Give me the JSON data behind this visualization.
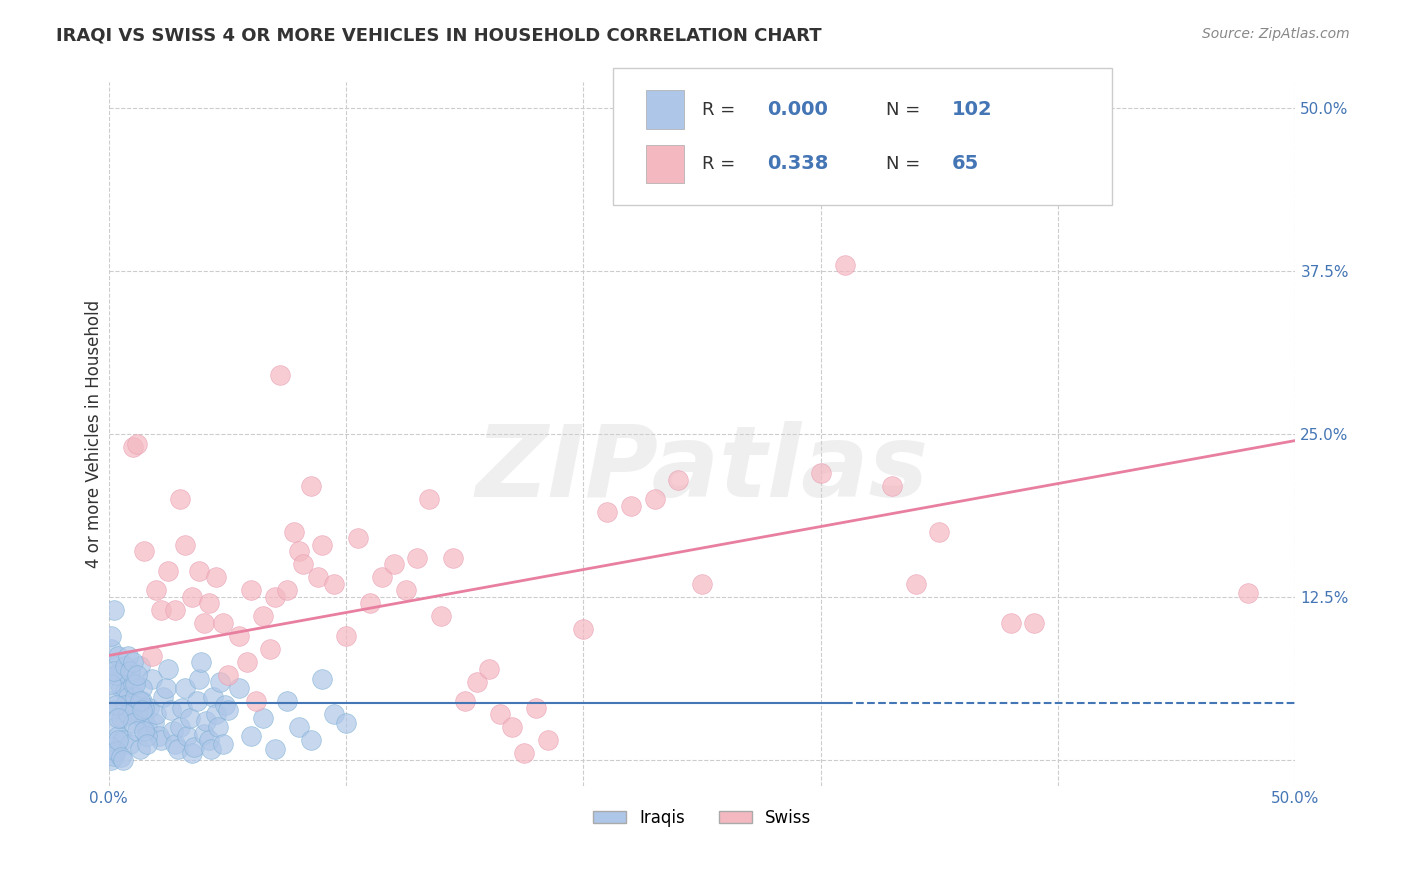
{
  "title": "IRAQI VS SWISS 4 OR MORE VEHICLES IN HOUSEHOLD CORRELATION CHART",
  "source": "Source: ZipAtlas.com",
  "ylabel": "4 or more Vehicles in Household",
  "xlim": [
    0.0,
    0.5
  ],
  "ylim": [
    -0.02,
    0.52
  ],
  "xticks": [
    0.0,
    0.1,
    0.2,
    0.3,
    0.4,
    0.5
  ],
  "xtick_labels": [
    "0.0%",
    "",
    "",
    "",
    "",
    "50.0%"
  ],
  "ytick_labels_right": [
    "50.0%",
    "37.5%",
    "25.0%",
    "12.5%",
    ""
  ],
  "yticks_right": [
    0.5,
    0.375,
    0.25,
    0.125,
    0.0
  ],
  "background_color": "#ffffff",
  "grid_color": "#cccccc",
  "iraqi_color": "#aec6e8",
  "swiss_color": "#f4b8c1",
  "iraqi_edge_color": "#7aafd4",
  "swiss_edge_color": "#e898b0",
  "iraqi_line_color": "#4475b4",
  "swiss_line_color": "#e87fa0",
  "iraqi_R": "0.000",
  "iraqi_N": "102",
  "swiss_R": "0.338",
  "swiss_N": "65",
  "watermark": "ZIPatlas",
  "iraqi_points": [
    [
      0.001,
      0.085
    ],
    [
      0.002,
      0.072
    ],
    [
      0.003,
      0.065
    ],
    [
      0.004,
      0.06
    ],
    [
      0.005,
      0.055
    ],
    [
      0.006,
      0.068
    ],
    [
      0.007,
      0.052
    ],
    [
      0.008,
      0.048
    ],
    [
      0.009,
      0.043
    ],
    [
      0.01,
      0.058
    ],
    [
      0.011,
      0.038
    ],
    [
      0.012,
      0.035
    ],
    [
      0.013,
      0.072
    ],
    [
      0.014,
      0.045
    ],
    [
      0.015,
      0.03
    ],
    [
      0.016,
      0.025
    ],
    [
      0.017,
      0.04
    ],
    [
      0.018,
      0.062
    ],
    [
      0.019,
      0.028
    ],
    [
      0.02,
      0.035
    ],
    [
      0.021,
      0.018
    ],
    [
      0.022,
      0.015
    ],
    [
      0.023,
      0.048
    ],
    [
      0.024,
      0.055
    ],
    [
      0.025,
      0.07
    ],
    [
      0.026,
      0.038
    ],
    [
      0.027,
      0.022
    ],
    [
      0.028,
      0.012
    ],
    [
      0.029,
      0.008
    ],
    [
      0.03,
      0.025
    ],
    [
      0.031,
      0.04
    ],
    [
      0.032,
      0.055
    ],
    [
      0.033,
      0.018
    ],
    [
      0.034,
      0.032
    ],
    [
      0.035,
      0.005
    ],
    [
      0.036,
      0.01
    ],
    [
      0.037,
      0.045
    ],
    [
      0.038,
      0.062
    ],
    [
      0.039,
      0.075
    ],
    [
      0.04,
      0.02
    ],
    [
      0.041,
      0.03
    ],
    [
      0.042,
      0.015
    ],
    [
      0.043,
      0.008
    ],
    [
      0.044,
      0.048
    ],
    [
      0.045,
      0.035
    ],
    [
      0.046,
      0.025
    ],
    [
      0.047,
      0.06
    ],
    [
      0.048,
      0.012
    ],
    [
      0.049,
      0.042
    ],
    [
      0.05,
      0.038
    ],
    [
      0.055,
      0.055
    ],
    [
      0.06,
      0.018
    ],
    [
      0.065,
      0.032
    ],
    [
      0.07,
      0.008
    ],
    [
      0.075,
      0.045
    ],
    [
      0.08,
      0.025
    ],
    [
      0.085,
      0.015
    ],
    [
      0.09,
      0.062
    ],
    [
      0.095,
      0.035
    ],
    [
      0.1,
      0.028
    ],
    [
      0.001,
      0.045
    ],
    [
      0.002,
      0.038
    ],
    [
      0.003,
      0.025
    ],
    [
      0.004,
      0.018
    ],
    [
      0.005,
      0.032
    ],
    [
      0.006,
      0.015
    ],
    [
      0.007,
      0.042
    ],
    [
      0.008,
      0.035
    ],
    [
      0.009,
      0.012
    ],
    [
      0.01,
      0.028
    ],
    [
      0.011,
      0.048
    ],
    [
      0.012,
      0.022
    ],
    [
      0.013,
      0.008
    ],
    [
      0.014,
      0.055
    ],
    [
      0.015,
      0.04
    ],
    [
      0.016,
      0.018
    ],
    [
      0.001,
      0.01
    ],
    [
      0.002,
      0.005
    ],
    [
      0.003,
      0.065
    ],
    [
      0.004,
      0.08
    ],
    [
      0.001,
      0.058
    ],
    [
      0.002,
      0.068
    ],
    [
      0.003,
      0.042
    ],
    [
      0.004,
      0.032
    ],
    [
      0.001,
      0.0
    ],
    [
      0.002,
      0.003
    ],
    [
      0.003,
      0.007
    ],
    [
      0.004,
      0.015
    ],
    [
      0.001,
      0.095
    ],
    [
      0.002,
      0.115
    ],
    [
      0.005,
      0.002
    ],
    [
      0.006,
      0.0
    ],
    [
      0.007,
      0.072
    ],
    [
      0.008,
      0.08
    ],
    [
      0.009,
      0.068
    ],
    [
      0.01,
      0.075
    ],
    [
      0.011,
      0.058
    ],
    [
      0.012,
      0.065
    ],
    [
      0.013,
      0.045
    ],
    [
      0.014,
      0.038
    ],
    [
      0.015,
      0.022
    ],
    [
      0.016,
      0.012
    ]
  ],
  "swiss_points": [
    [
      0.01,
      0.24
    ],
    [
      0.012,
      0.242
    ],
    [
      0.015,
      0.16
    ],
    [
      0.018,
      0.08
    ],
    [
      0.02,
      0.13
    ],
    [
      0.022,
      0.115
    ],
    [
      0.025,
      0.145
    ],
    [
      0.028,
      0.115
    ],
    [
      0.03,
      0.2
    ],
    [
      0.032,
      0.165
    ],
    [
      0.035,
      0.125
    ],
    [
      0.038,
      0.145
    ],
    [
      0.04,
      0.105
    ],
    [
      0.042,
      0.12
    ],
    [
      0.045,
      0.14
    ],
    [
      0.048,
      0.105
    ],
    [
      0.05,
      0.065
    ],
    [
      0.055,
      0.095
    ],
    [
      0.058,
      0.075
    ],
    [
      0.06,
      0.13
    ],
    [
      0.062,
      0.045
    ],
    [
      0.065,
      0.11
    ],
    [
      0.068,
      0.085
    ],
    [
      0.07,
      0.125
    ],
    [
      0.072,
      0.295
    ],
    [
      0.075,
      0.13
    ],
    [
      0.078,
      0.175
    ],
    [
      0.08,
      0.16
    ],
    [
      0.082,
      0.15
    ],
    [
      0.085,
      0.21
    ],
    [
      0.088,
      0.14
    ],
    [
      0.09,
      0.165
    ],
    [
      0.095,
      0.135
    ],
    [
      0.1,
      0.095
    ],
    [
      0.105,
      0.17
    ],
    [
      0.11,
      0.12
    ],
    [
      0.115,
      0.14
    ],
    [
      0.12,
      0.15
    ],
    [
      0.125,
      0.13
    ],
    [
      0.13,
      0.155
    ],
    [
      0.135,
      0.2
    ],
    [
      0.14,
      0.11
    ],
    [
      0.145,
      0.155
    ],
    [
      0.15,
      0.045
    ],
    [
      0.155,
      0.06
    ],
    [
      0.16,
      0.07
    ],
    [
      0.165,
      0.035
    ],
    [
      0.17,
      0.025
    ],
    [
      0.175,
      0.005
    ],
    [
      0.18,
      0.04
    ],
    [
      0.185,
      0.015
    ],
    [
      0.2,
      0.1
    ],
    [
      0.21,
      0.19
    ],
    [
      0.22,
      0.195
    ],
    [
      0.23,
      0.2
    ],
    [
      0.24,
      0.215
    ],
    [
      0.25,
      0.135
    ],
    [
      0.3,
      0.22
    ],
    [
      0.31,
      0.38
    ],
    [
      0.33,
      0.21
    ],
    [
      0.34,
      0.135
    ],
    [
      0.35,
      0.175
    ],
    [
      0.38,
      0.105
    ],
    [
      0.39,
      0.105
    ],
    [
      0.48,
      0.128
    ]
  ],
  "iraqi_line_solid": {
    "x0": 0.0,
    "x1": 0.31,
    "y0": 0.0435,
    "y1": 0.0435
  },
  "iraqi_line_dashed": {
    "x0": 0.31,
    "x1": 0.5,
    "y0": 0.0435,
    "y1": 0.0435
  },
  "swiss_line": {
    "x0": 0.0,
    "x1": 0.5,
    "y0": 0.08,
    "y1": 0.245
  }
}
